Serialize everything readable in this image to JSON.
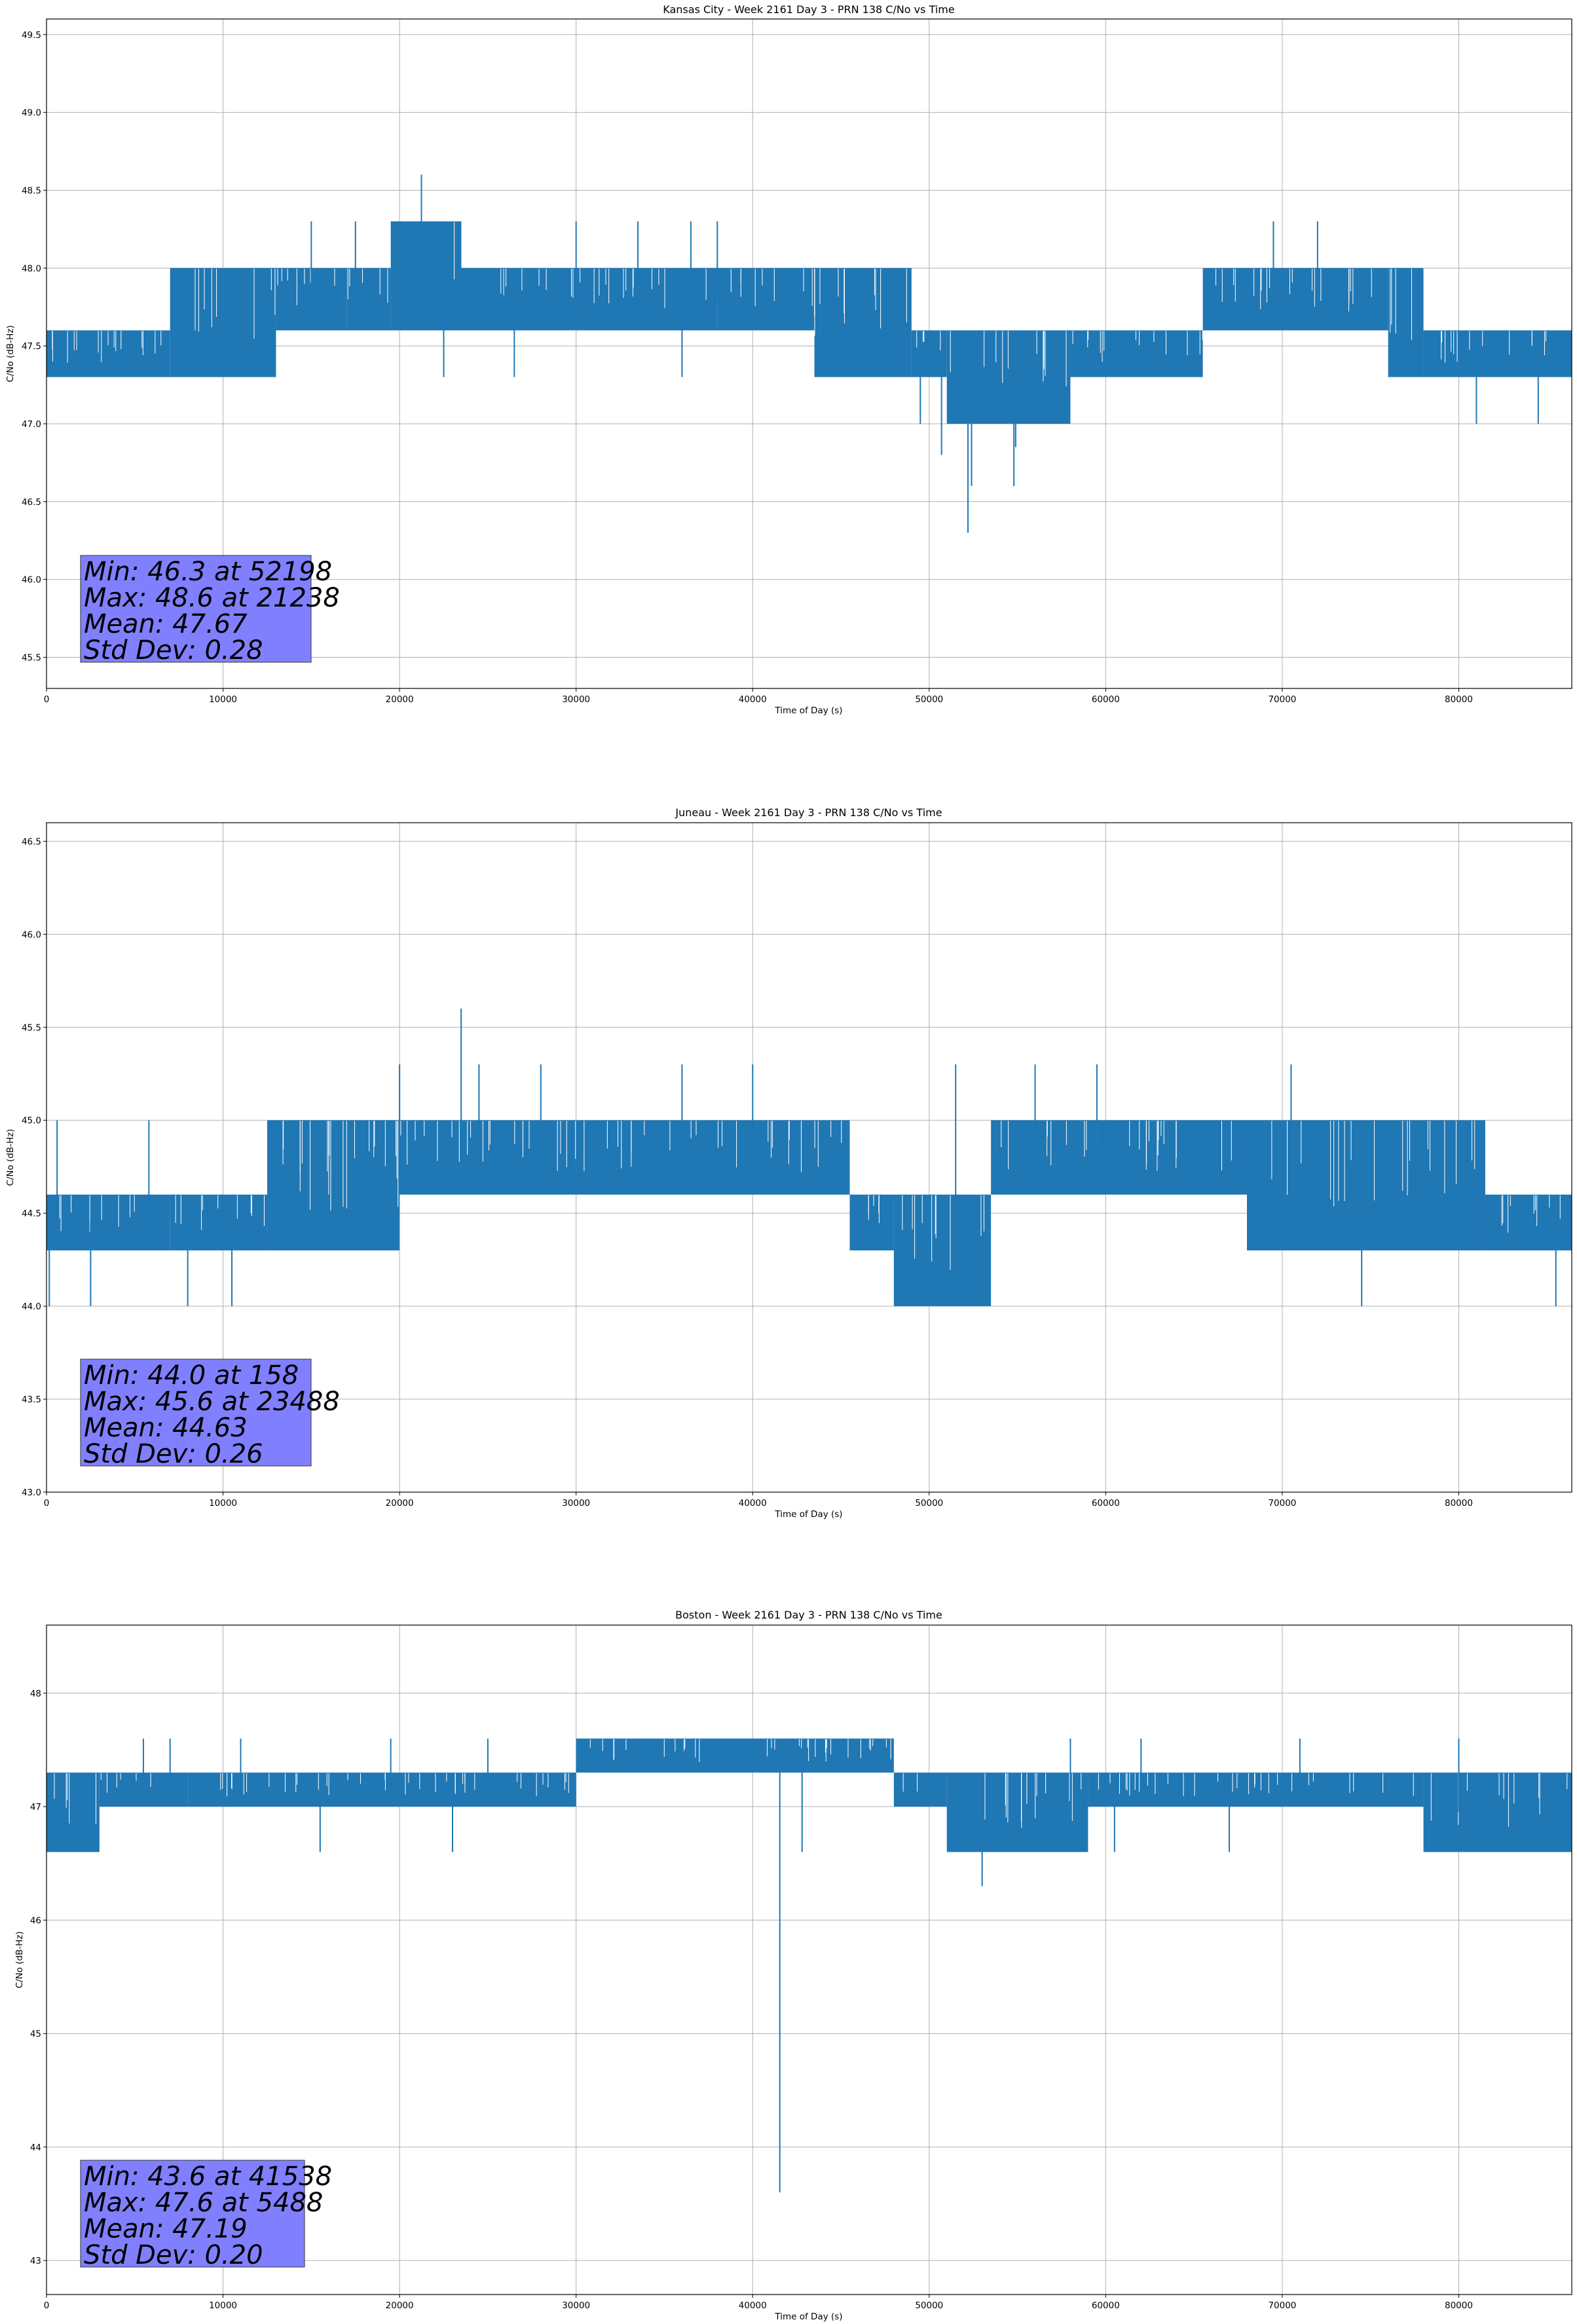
{
  "chart_data": [
    {
      "type": "line",
      "title": "Kansas City - Week 2161 Day 3 - PRN 138 C/No vs Time",
      "xlabel": "Time of Day (s)",
      "ylabel": "C/No (dB-Hz)",
      "xlim": [
        0,
        86400
      ],
      "ylim": [
        45.3,
        49.6
      ],
      "grid": true,
      "color": "#1f77b4",
      "x_ticks": [
        0,
        10000,
        20000,
        30000,
        40000,
        50000,
        60000,
        70000,
        80000
      ],
      "x_tick_labels": [
        "0",
        "10000",
        "20000",
        "30000",
        "40000",
        "50000",
        "60000",
        "70000",
        "80000"
      ],
      "y_ticks": [
        45.5,
        46.0,
        46.5,
        47.0,
        47.5,
        48.0,
        48.5,
        49.0,
        49.5
      ],
      "y_tick_labels": [
        "45.5",
        "46.0",
        "46.5",
        "47.0",
        "47.5",
        "48.0",
        "48.5",
        "49.0",
        "49.5"
      ],
      "bands": [
        {
          "x": [
            0,
            7000
          ],
          "range": [
            47.3,
            47.6
          ]
        },
        {
          "x": [
            7000,
            13000
          ],
          "range": [
            47.3,
            48.0
          ]
        },
        {
          "x": [
            13000,
            17000
          ],
          "range": [
            47.6,
            48.0
          ]
        },
        {
          "x": [
            17000,
            19500
          ],
          "range": [
            47.6,
            48.0
          ]
        },
        {
          "x": [
            19500,
            23500
          ],
          "range": [
            47.6,
            48.3
          ]
        },
        {
          "x": [
            23500,
            30000
          ],
          "range": [
            47.6,
            48.0
          ]
        },
        {
          "x": [
            30000,
            38000
          ],
          "range": [
            47.6,
            48.0
          ]
        },
        {
          "x": [
            38000,
            43500
          ],
          "range": [
            47.6,
            48.0
          ]
        },
        {
          "x": [
            43500,
            49000
          ],
          "range": [
            47.3,
            48.0
          ]
        },
        {
          "x": [
            49000,
            51000
          ],
          "range": [
            47.3,
            47.6
          ]
        },
        {
          "x": [
            51000,
            58000
          ],
          "range": [
            47.0,
            47.6
          ]
        },
        {
          "x": [
            58000,
            65500
          ],
          "range": [
            47.3,
            47.6
          ]
        },
        {
          "x": [
            65500,
            76000
          ],
          "range": [
            47.6,
            48.0
          ]
        },
        {
          "x": [
            76000,
            78000
          ],
          "range": [
            47.3,
            48.0
          ]
        },
        {
          "x": [
            78000,
            86400
          ],
          "range": [
            47.3,
            47.6
          ]
        }
      ],
      "spikes": [
        {
          "x": 15000,
          "y": 48.3
        },
        {
          "x": 17500,
          "y": 48.3
        },
        {
          "x": 21238,
          "y": 48.6
        },
        {
          "x": 22500,
          "y": 47.3
        },
        {
          "x": 26500,
          "y": 47.3
        },
        {
          "x": 30000,
          "y": 48.3
        },
        {
          "x": 33500,
          "y": 48.3
        },
        {
          "x": 36500,
          "y": 48.3
        },
        {
          "x": 38000,
          "y": 48.3
        },
        {
          "x": 36000,
          "y": 47.3
        },
        {
          "x": 44000,
          "y": 47.3
        },
        {
          "x": 49500,
          "y": 47.0
        },
        {
          "x": 50700,
          "y": 46.8
        },
        {
          "x": 52198,
          "y": 46.3
        },
        {
          "x": 52400,
          "y": 46.6
        },
        {
          "x": 54800,
          "y": 46.6
        },
        {
          "x": 54900,
          "y": 46.85
        },
        {
          "x": 69500,
          "y": 48.3
        },
        {
          "x": 72000,
          "y": 48.3
        },
        {
          "x": 81000,
          "y": 47.0
        },
        {
          "x": 84500,
          "y": 47.0
        }
      ],
      "stats": {
        "min": "Min: 46.3 at 52198",
        "max": "Max: 48.6 at 21238",
        "mean": "Mean: 47.67",
        "std": "Std Dev: 0.28"
      }
    },
    {
      "type": "line",
      "title": "Juneau - Week 2161 Day 3 - PRN 138 C/No vs Time",
      "xlabel": "Time of Day (s)",
      "ylabel": "C/No (dB-Hz)",
      "xlim": [
        0,
        86400
      ],
      "ylim": [
        43.0,
        46.6
      ],
      "grid": true,
      "color": "#1f77b4",
      "x_ticks": [
        0,
        10000,
        20000,
        30000,
        40000,
        50000,
        60000,
        70000,
        80000
      ],
      "x_tick_labels": [
        "0",
        "10000",
        "20000",
        "30000",
        "40000",
        "50000",
        "60000",
        "70000",
        "80000"
      ],
      "y_ticks": [
        43.0,
        43.5,
        44.0,
        44.5,
        45.0,
        45.5,
        46.0,
        46.5
      ],
      "y_tick_labels": [
        "43.0",
        "43.5",
        "44.0",
        "44.5",
        "45.0",
        "45.5",
        "46.0",
        "46.5"
      ],
      "bands": [
        {
          "x": [
            0,
            7000
          ],
          "range": [
            44.3,
            44.6
          ]
        },
        {
          "x": [
            7000,
            12500
          ],
          "range": [
            44.3,
            44.6
          ]
        },
        {
          "x": [
            12500,
            20000
          ],
          "range": [
            44.3,
            45.0
          ]
        },
        {
          "x": [
            20000,
            30000
          ],
          "range": [
            44.6,
            45.0
          ]
        },
        {
          "x": [
            30000,
            45500
          ],
          "range": [
            44.6,
            45.0
          ]
        },
        {
          "x": [
            45500,
            48000
          ],
          "range": [
            44.3,
            44.6
          ]
        },
        {
          "x": [
            48000,
            53500
          ],
          "range": [
            44.0,
            44.6
          ]
        },
        {
          "x": [
            53500,
            68000
          ],
          "range": [
            44.6,
            45.0
          ]
        },
        {
          "x": [
            68000,
            81500
          ],
          "range": [
            44.3,
            45.0
          ]
        },
        {
          "x": [
            81500,
            86400
          ],
          "range": [
            44.3,
            44.6
          ]
        }
      ],
      "spikes": [
        {
          "x": 158,
          "y": 44.0
        },
        {
          "x": 600,
          "y": 45.0
        },
        {
          "x": 2500,
          "y": 44.0
        },
        {
          "x": 5800,
          "y": 45.0
        },
        {
          "x": 8000,
          "y": 44.0
        },
        {
          "x": 10500,
          "y": 44.0
        },
        {
          "x": 20000,
          "y": 45.3
        },
        {
          "x": 23488,
          "y": 45.6
        },
        {
          "x": 24500,
          "y": 45.3
        },
        {
          "x": 28000,
          "y": 45.3
        },
        {
          "x": 36000,
          "y": 45.3
        },
        {
          "x": 40000,
          "y": 45.3
        },
        {
          "x": 51500,
          "y": 45.3
        },
        {
          "x": 56000,
          "y": 45.3
        },
        {
          "x": 59500,
          "y": 45.3
        },
        {
          "x": 70500,
          "y": 45.3
        },
        {
          "x": 74500,
          "y": 44.0
        },
        {
          "x": 85500,
          "y": 44.0
        }
      ],
      "stats": {
        "min": "Min: 44.0 at 158",
        "max": "Max: 45.6 at 23488",
        "mean": "Mean: 44.63",
        "std": "Std Dev: 0.26"
      }
    },
    {
      "type": "line",
      "title": "Boston - Week 2161 Day 3 - PRN 138 C/No vs Time",
      "xlabel": "Time of Day (s)",
      "ylabel": "C/No (dB-Hz)",
      "xlim": [
        0,
        86400
      ],
      "ylim": [
        42.7,
        48.6
      ],
      "grid": true,
      "color": "#1f77b4",
      "x_ticks": [
        0,
        10000,
        20000,
        30000,
        40000,
        50000,
        60000,
        70000,
        80000
      ],
      "x_tick_labels": [
        "0",
        "10000",
        "20000",
        "30000",
        "40000",
        "50000",
        "60000",
        "70000",
        "80000"
      ],
      "y_ticks": [
        43,
        44,
        45,
        46,
        47,
        48
      ],
      "y_tick_labels": [
        "43",
        "44",
        "45",
        "46",
        "47",
        "48"
      ],
      "bands": [
        {
          "x": [
            0,
            3000
          ],
          "range": [
            46.6,
            47.3
          ]
        },
        {
          "x": [
            3000,
            8000
          ],
          "range": [
            47.0,
            47.3
          ]
        },
        {
          "x": [
            8000,
            30000
          ],
          "range": [
            47.0,
            47.3
          ]
        },
        {
          "x": [
            30000,
            48000
          ],
          "range": [
            47.3,
            47.6
          ]
        },
        {
          "x": [
            48000,
            51000
          ],
          "range": [
            47.0,
            47.3
          ]
        },
        {
          "x": [
            51000,
            59000
          ],
          "range": [
            46.6,
            47.3
          ]
        },
        {
          "x": [
            59000,
            78000
          ],
          "range": [
            47.0,
            47.3
          ]
        },
        {
          "x": [
            78000,
            86400
          ],
          "range": [
            46.6,
            47.3
          ]
        }
      ],
      "spikes": [
        {
          "x": 5488,
          "y": 47.6
        },
        {
          "x": 7000,
          "y": 47.6
        },
        {
          "x": 11000,
          "y": 47.6
        },
        {
          "x": 15500,
          "y": 46.6
        },
        {
          "x": 19500,
          "y": 47.6
        },
        {
          "x": 23000,
          "y": 46.6
        },
        {
          "x": 25000,
          "y": 47.6
        },
        {
          "x": 41538,
          "y": 43.6
        },
        {
          "x": 42800,
          "y": 46.6
        },
        {
          "x": 53000,
          "y": 46.3
        },
        {
          "x": 58000,
          "y": 47.6
        },
        {
          "x": 60500,
          "y": 46.6
        },
        {
          "x": 62000,
          "y": 47.6
        },
        {
          "x": 67000,
          "y": 46.6
        },
        {
          "x": 71000,
          "y": 47.6
        },
        {
          "x": 80000,
          "y": 47.6
        },
        {
          "x": 83000,
          "y": 46.6
        }
      ],
      "stats": {
        "min": "Min: 43.6 at 41538",
        "max": "Max: 47.6 at 5488",
        "mean": "Mean: 47.19",
        "std": "Std Dev: 0.20"
      }
    }
  ]
}
